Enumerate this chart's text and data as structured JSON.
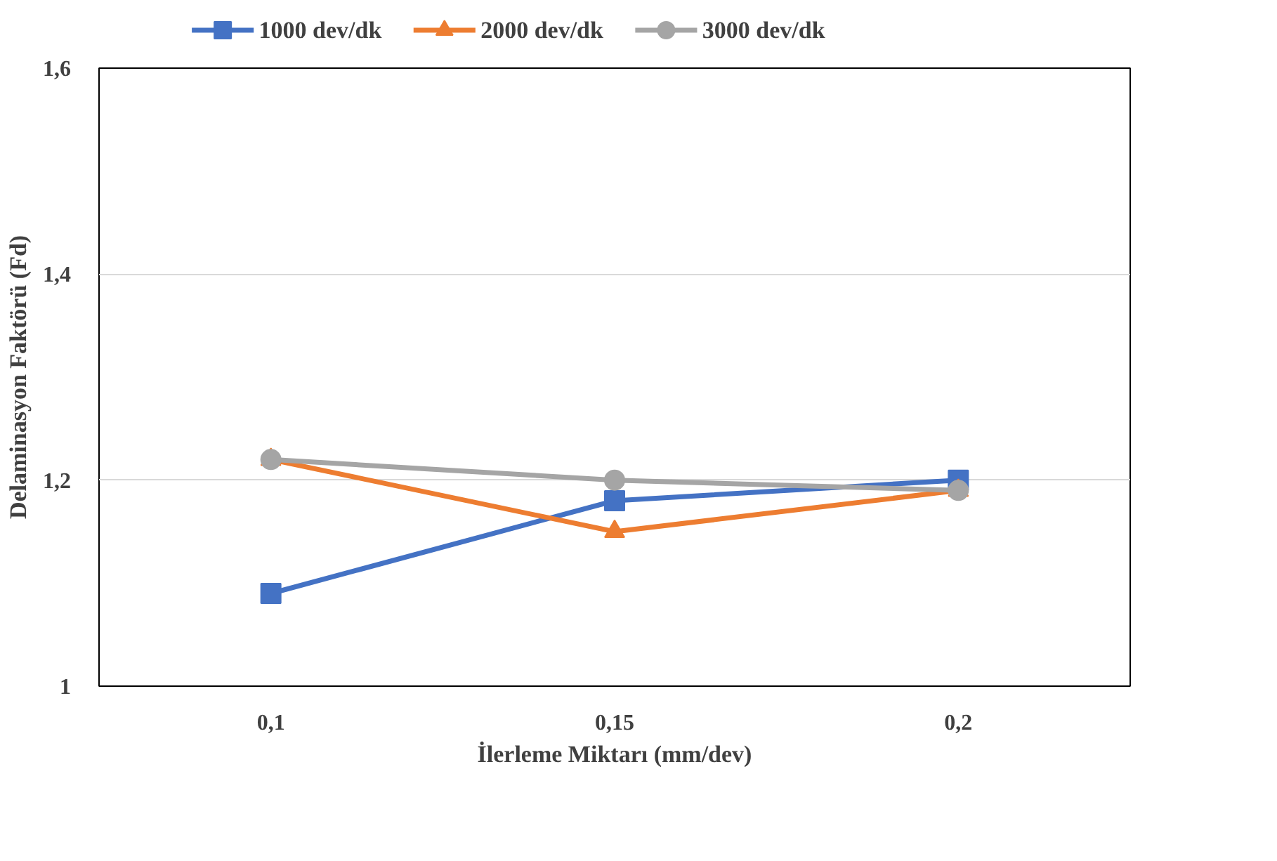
{
  "chart_data": {
    "type": "line",
    "xlabel": "İlerleme Miktarı (mm/dev)",
    "ylabel": "Delaminasyon Faktörü (Fd)",
    "categories": [
      "0,1",
      "0,15",
      "0,2"
    ],
    "series": [
      {
        "name": "1000 dev/dk",
        "color": "#4472c4",
        "marker": "square",
        "values": [
          1.09,
          1.18,
          1.2
        ]
      },
      {
        "name": "2000 dev/dk",
        "color": "#ed7d31",
        "marker": "triangle",
        "values": [
          1.22,
          1.15,
          1.19
        ]
      },
      {
        "name": "3000 dev/dk",
        "color": "#a5a5a5",
        "marker": "circle",
        "values": [
          1.22,
          1.2,
          1.19
        ]
      }
    ],
    "ylim": [
      1,
      1.6
    ],
    "yticks": [
      {
        "value": 1,
        "label": "1"
      },
      {
        "value": 1.2,
        "label": "1,2"
      },
      {
        "value": 1.4,
        "label": "1,4"
      },
      {
        "value": 1.6,
        "label": "1,6"
      }
    ],
    "grid": "y",
    "legend": "top"
  }
}
